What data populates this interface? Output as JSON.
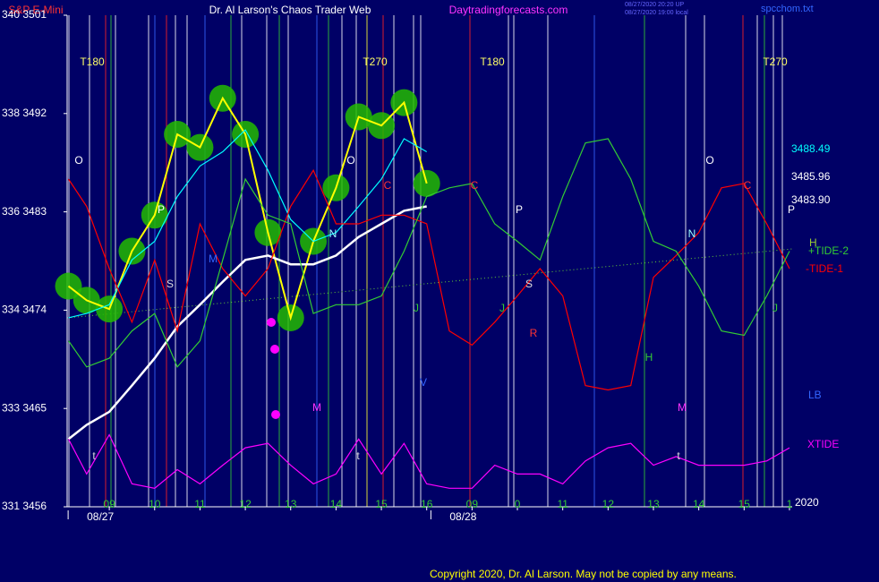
{
  "chart_data": {
    "type": "line",
    "title": "Dr. Al Larson's Chaos Trader Web",
    "instrument": "S&P E-Mini",
    "site": "Daytradingforecasts.com",
    "stamps": [
      "08/27/2020 20:20 UP",
      "08/27/2020 19:00 local"
    ],
    "file": "spcchom.txt",
    "copyright": "Copyright 2020, Dr. Al Larson. May not be copied by any means.",
    "year": "2020",
    "dates": [
      "08/27",
      "08/28"
    ],
    "ylim": [
      3456,
      3501
    ],
    "yticks": [
      {
        "value": 3501,
        "label": "340  3501"
      },
      {
        "value": 3492,
        "label": "338  3492"
      },
      {
        "value": 3483,
        "label": "336  3483"
      },
      {
        "value": 3474,
        "label": "334  3474"
      },
      {
        "value": 3465,
        "label": "333  3465"
      },
      {
        "value": 3456,
        "label": "331  3456"
      }
    ],
    "xlim": [
      -0.93,
      15.06
    ],
    "xticks": [
      {
        "value": 0,
        "label": "09"
      },
      {
        "value": 1,
        "label": "10"
      },
      {
        "value": 2,
        "label": "11"
      },
      {
        "value": 3,
        "label": "12"
      },
      {
        "value": 4,
        "label": "13"
      },
      {
        "value": 5,
        "label": "14"
      },
      {
        "value": 6,
        "label": "15"
      },
      {
        "value": 7,
        "label": "16"
      },
      {
        "value": 8,
        "label": "09"
      },
      {
        "value": 9,
        "label": "0"
      },
      {
        "value": 10,
        "label": "11"
      },
      {
        "value": 11,
        "label": "12"
      },
      {
        "value": 12,
        "label": "13"
      },
      {
        "value": 13,
        "label": "14"
      },
      {
        "value": 14,
        "label": "15"
      },
      {
        "value": 15,
        "label": "1"
      }
    ],
    "x": [
      -0.9,
      -0.5,
      0,
      0.5,
      1,
      1.5,
      2,
      2.5,
      3,
      3.5,
      4,
      4.5,
      5,
      5.5,
      6,
      6.5,
      7,
      7.5,
      8,
      8.5,
      9,
      9.5,
      10,
      10.5,
      11,
      11.5,
      12,
      12.5,
      13,
      13.5,
      14,
      14.5,
      15
    ],
    "series": [
      {
        "name": "H",
        "color": "#ffff00",
        "values": [
          3476.2,
          3474.9,
          3474.1,
          3479.4,
          3482.7,
          3490.1,
          3488.9,
          3493.4,
          3490.1,
          3481.1,
          3473.3,
          3480.3,
          3485.2,
          3491.7,
          3490.9,
          3493.0,
          3485.6,
          null,
          null,
          null,
          null,
          null,
          null,
          null,
          null,
          null,
          null,
          null,
          null,
          null,
          null,
          null,
          null
        ]
      },
      {
        "name": "3488.49",
        "color": "#00ffff",
        "values": [
          3473.3,
          3473.7,
          3474.5,
          3478.6,
          3480.3,
          3484.4,
          3487.2,
          3488.5,
          3490.5,
          3486.8,
          3482.3,
          3480.3,
          3481.1,
          3483.5,
          3486.0,
          3489.7,
          3488.5,
          null,
          null,
          null,
          null,
          null,
          null,
          null,
          null,
          null,
          null,
          null,
          null,
          null,
          null,
          null,
          null
        ]
      },
      {
        "name": "3483.90",
        "color": "#ffffff",
        "values": [
          3462.2,
          3463.5,
          3464.7,
          3467.1,
          3469.6,
          3472.5,
          3474.5,
          3476.6,
          3478.6,
          3479.0,
          3478.2,
          3478.2,
          3479.0,
          3480.7,
          3481.9,
          3483.1,
          3483.5,
          null,
          null,
          null,
          null,
          null,
          null,
          null,
          null,
          null,
          null,
          null,
          null,
          null,
          null,
          null,
          null
        ]
      },
      {
        "name": "-TIDE-1",
        "color": "#ff0000",
        "values": [
          3486.0,
          3483.5,
          3477.8,
          3472.9,
          3478.6,
          3472.1,
          3481.9,
          3477.8,
          3475.3,
          3477.8,
          3483.5,
          3486.8,
          3481.9,
          3481.9,
          3482.7,
          3482.7,
          3481.9,
          3472.1,
          3470.8,
          3472.9,
          3475.3,
          3477.8,
          3475.3,
          3467.1,
          3466.7,
          3467.1,
          3477.0,
          3479.0,
          3481.1,
          3485.2,
          3485.6,
          3481.9,
          3477.8
        ]
      },
      {
        "name": "+TIDE-2",
        "color": "#33cc33",
        "values": [
          3471.2,
          3468.8,
          3469.6,
          3472.1,
          3473.7,
          3468.8,
          3471.2,
          3478.6,
          3486.0,
          3482.7,
          3481.9,
          3473.7,
          3474.5,
          3474.5,
          3475.3,
          3479.4,
          3484.4,
          3485.2,
          3485.6,
          3481.9,
          3480.3,
          3478.6,
          3484.4,
          3489.3,
          3489.7,
          3486.0,
          3480.3,
          3479.4,
          3476.2,
          3472.1,
          3471.7,
          3475.3,
          3479.4
        ]
      },
      {
        "name": "XTIDE",
        "color": "#ff00ff",
        "values": [
          3462.2,
          3459.0,
          3462.6,
          3458.1,
          3457.7,
          3459.4,
          3458.1,
          3459.8,
          3461.4,
          3461.8,
          3459.8,
          3458.1,
          3459.0,
          3462.2,
          3459.0,
          3461.8,
          3458.1,
          3457.7,
          3457.7,
          3459.8,
          3459.0,
          3459.0,
          3458.1,
          3460.2,
          3461.4,
          3461.8,
          3459.8,
          3460.6,
          3459.8,
          3459.8,
          3459.8,
          3460.2,
          3461.4
        ]
      }
    ],
    "right_labels": [
      {
        "text": "3485.96",
        "color": "#ffffff"
      },
      {
        "text": "LB",
        "color": "#3366ff"
      }
    ],
    "annotations": [
      {
        "text": "T180",
        "color": "#ffff66"
      },
      {
        "text": "T270",
        "color": "#ffff66"
      },
      {
        "text": "T180",
        "color": "#ffff66"
      },
      {
        "text": "T270",
        "color": "#ffff66"
      },
      {
        "text": "O",
        "color": "#ffffff"
      },
      {
        "text": "O",
        "color": "#ffffff"
      },
      {
        "text": "O",
        "color": "#ffffff"
      },
      {
        "text": "P",
        "color": "#ffffff"
      },
      {
        "text": "P",
        "color": "#ffffff"
      },
      {
        "text": "P",
        "color": "#ffffff"
      },
      {
        "text": "S",
        "color": "#dddddd"
      },
      {
        "text": "S",
        "color": "#dddddd"
      },
      {
        "text": "N",
        "color": "#99ffff"
      },
      {
        "text": "N",
        "color": "#99ffff"
      },
      {
        "text": "C",
        "color": "#ff3333"
      },
      {
        "text": "C",
        "color": "#ff3333"
      },
      {
        "text": "C",
        "color": "#ff3333"
      },
      {
        "text": "J",
        "color": "#33cc33"
      },
      {
        "text": "J",
        "color": "#33cc33"
      },
      {
        "text": "J",
        "color": "#33cc33"
      },
      {
        "text": "R",
        "color": "#ff3333"
      },
      {
        "text": "M",
        "color": "#3366ff"
      },
      {
        "text": "M",
        "color": "#ff33ff"
      },
      {
        "text": "M",
        "color": "#ff33ff"
      },
      {
        "text": "H",
        "color": "#33cc33"
      },
      {
        "text": "V",
        "color": "#3366ff"
      },
      {
        "text": "t",
        "color": "#dddddd"
      },
      {
        "text": "t",
        "color": "#dddddd"
      },
      {
        "text": "t",
        "color": "#dddddd"
      }
    ]
  }
}
